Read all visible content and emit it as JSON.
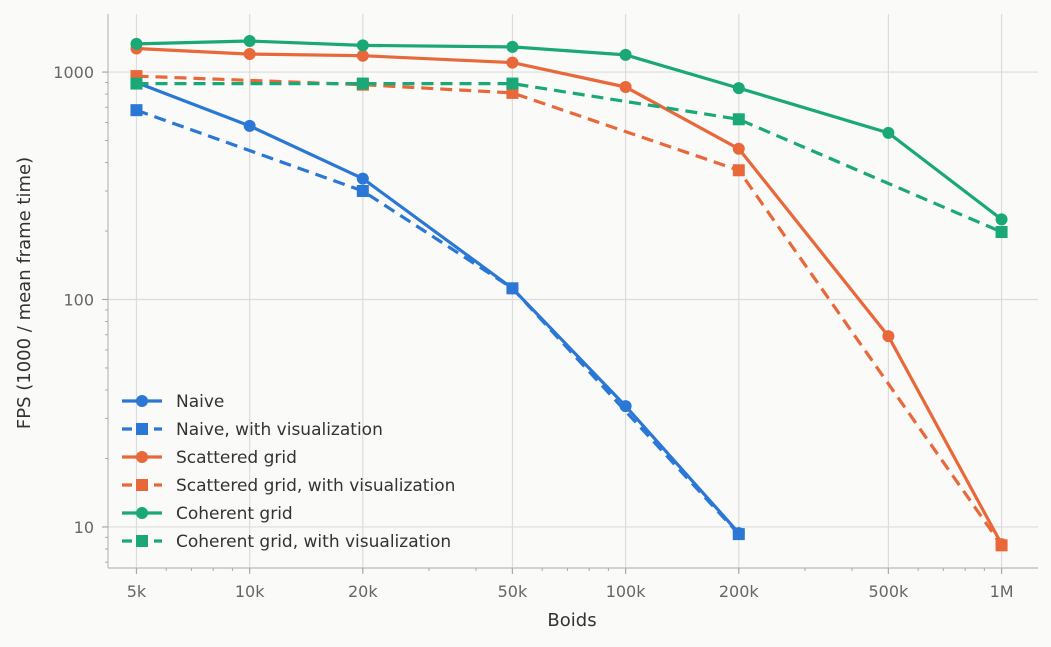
{
  "chart_data": {
    "type": "line",
    "xlabel": "Boids",
    "ylabel": "FPS (1000 / mean frame time)",
    "x_scale": "log",
    "y_scale": "log",
    "xlim": [
      4200,
      1250000
    ],
    "ylim": [
      6.6,
      1800
    ],
    "x_ticks": [
      5000,
      10000,
      20000,
      50000,
      100000,
      200000,
      500000,
      1000000
    ],
    "x_tick_labels": [
      "5k",
      "10k",
      "20k",
      "50k",
      "100k",
      "200k",
      "500k",
      "1M"
    ],
    "y_ticks": [
      10,
      100,
      1000
    ],
    "y_tick_labels": [
      "10",
      "100",
      "1000"
    ],
    "grid": true,
    "legend_position": "bottom-left",
    "series": [
      {
        "name": "Naive",
        "color": "#2a77d6",
        "dash": "solid",
        "marker": "circle",
        "points": [
          [
            5000,
            900
          ],
          [
            10000,
            580
          ],
          [
            20000,
            340
          ],
          [
            50000,
            112
          ],
          [
            100000,
            34
          ],
          [
            200000,
            9.4
          ]
        ]
      },
      {
        "name": "Naive, with visualization",
        "color": "#2a77d6",
        "dash": "dashed",
        "marker": "square",
        "points": [
          [
            5000,
            680
          ],
          [
            20000,
            300
          ],
          [
            50000,
            112
          ],
          [
            200000,
            9.3
          ]
        ]
      },
      {
        "name": "Scattered grid",
        "color": "#e8683a",
        "dash": "solid",
        "marker": "circle",
        "points": [
          [
            5000,
            1270
          ],
          [
            10000,
            1200
          ],
          [
            20000,
            1180
          ],
          [
            50000,
            1100
          ],
          [
            100000,
            860
          ],
          [
            200000,
            460
          ],
          [
            500000,
            69
          ],
          [
            1000000,
            8.4
          ]
        ]
      },
      {
        "name": "Scattered grid, with visualization",
        "color": "#e8683a",
        "dash": "dashed",
        "marker": "square",
        "points": [
          [
            5000,
            960
          ],
          [
            20000,
            880
          ],
          [
            50000,
            810
          ],
          [
            200000,
            370
          ],
          [
            1000000,
            8.3
          ]
        ]
      },
      {
        "name": "Coherent grid",
        "color": "#1aa876",
        "dash": "solid",
        "marker": "circle",
        "points": [
          [
            5000,
            1330
          ],
          [
            10000,
            1370
          ],
          [
            20000,
            1310
          ],
          [
            50000,
            1290
          ],
          [
            100000,
            1190
          ],
          [
            200000,
            850
          ],
          [
            500000,
            540
          ],
          [
            1000000,
            225
          ]
        ]
      },
      {
        "name": "Coherent grid, with visualization",
        "color": "#1aa876",
        "dash": "dashed",
        "marker": "square",
        "points": [
          [
            5000,
            890
          ],
          [
            20000,
            890
          ],
          [
            50000,
            890
          ],
          [
            200000,
            620
          ],
          [
            1000000,
            198
          ]
        ]
      }
    ]
  }
}
